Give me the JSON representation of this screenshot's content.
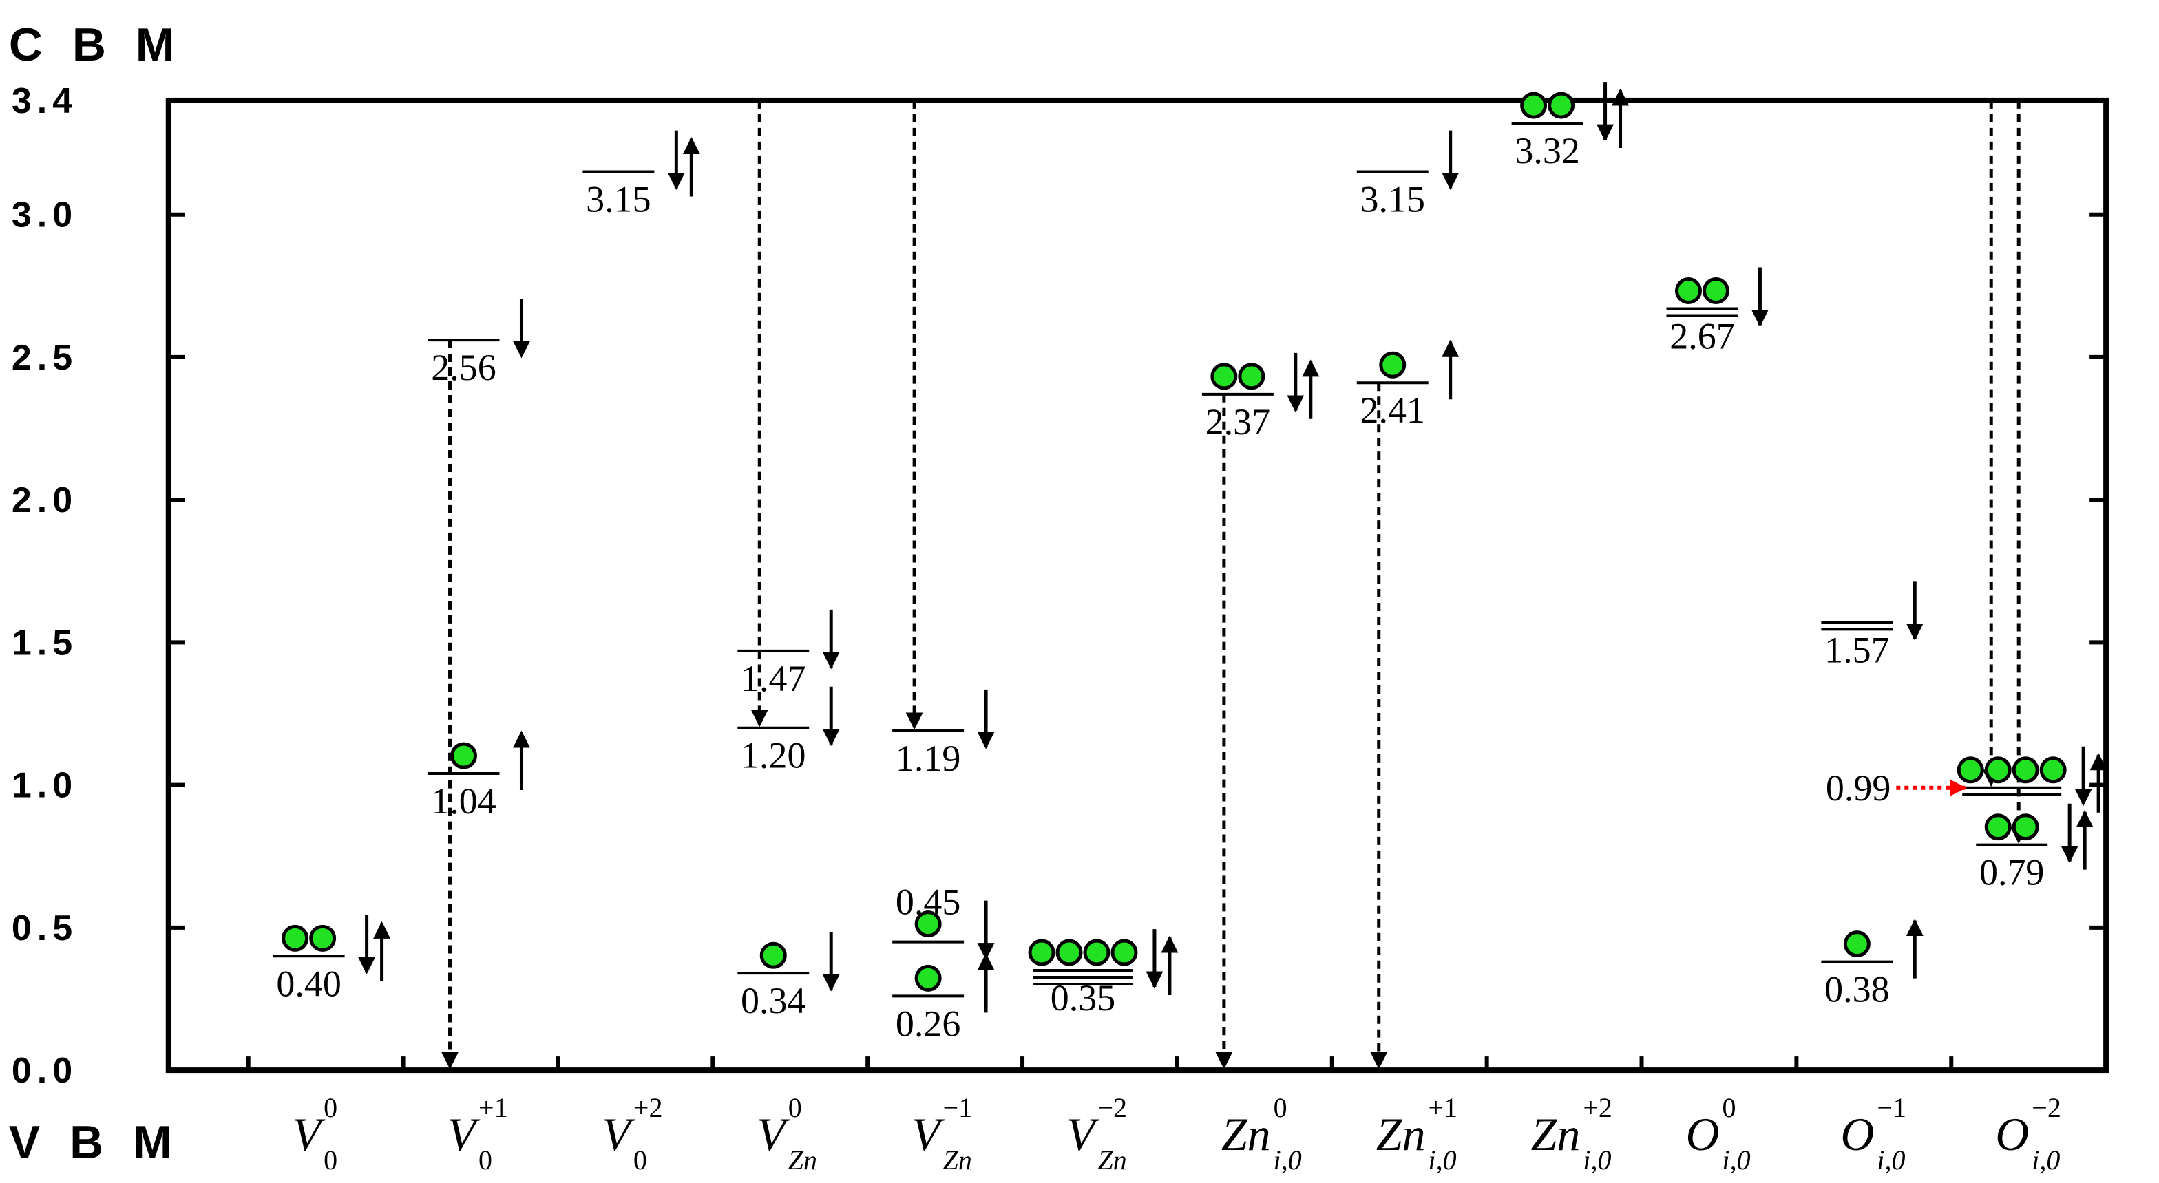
{
  "chart_data": {
    "type": "level",
    "top_label": "C B M",
    "bottom_label": "V B M",
    "ylim": [
      0,
      3.4
    ],
    "yticks": [
      {
        "value": 0,
        "label": "0.0"
      },
      {
        "value": 0.5,
        "label": "0.5"
      },
      {
        "value": 1,
        "label": "1.0"
      },
      {
        "value": 1.5,
        "label": "1.5"
      },
      {
        "value": 2,
        "label": "2.0"
      },
      {
        "value": 2.5,
        "label": "2.5"
      },
      {
        "value": 3,
        "label": "3.0"
      },
      {
        "value": 3.4,
        "label": "3.4"
      }
    ],
    "categories": [
      {
        "base": "V",
        "sup": "0",
        "sub": "0"
      },
      {
        "base": "V",
        "sup": "+1",
        "sub": "0"
      },
      {
        "base": "V",
        "sup": "+2",
        "sub": "0"
      },
      {
        "base": "V",
        "sup": "0",
        "sub": "Zn"
      },
      {
        "base": "V",
        "sup": "−1",
        "sub": "Zn"
      },
      {
        "base": "V",
        "sup": "−2",
        "sub": "Zn"
      },
      {
        "base": "Zn",
        "sup": "0",
        "sub": "i,0"
      },
      {
        "base": "Zn",
        "sup": "+1",
        "sub": "i,0"
      },
      {
        "base": "Zn",
        "sup": "+2",
        "sub": "i,0"
      },
      {
        "base": "O",
        "sup": "0",
        "sub": "i,0"
      },
      {
        "base": "O",
        "sup": "−1",
        "sub": "i,0"
      },
      {
        "base": "O",
        "sup": "−2",
        "sub": "i,0"
      }
    ],
    "levels": [
      {
        "category": 0,
        "value": 0.4,
        "label": "0.40",
        "electrons": 2,
        "spin": "down-up",
        "lines": 1
      },
      {
        "category": 1,
        "value": 2.56,
        "label": "2.56",
        "electrons": 0,
        "spin": "down",
        "lines": 1
      },
      {
        "category": 1,
        "value": 1.04,
        "label": "1.04",
        "electrons": 1,
        "spin": "up",
        "lines": 1
      },
      {
        "category": 2,
        "value": 3.15,
        "label": "3.15",
        "electrons": 0,
        "spin": "down-up",
        "lines": 1
      },
      {
        "category": 3,
        "value": 1.47,
        "label": "1.47",
        "electrons": 0,
        "spin": "down",
        "lines": 1
      },
      {
        "category": 3,
        "value": 1.2,
        "label": "1.20",
        "electrons": 0,
        "spin": "down",
        "lines": 1
      },
      {
        "category": 3,
        "value": 0.34,
        "label": "0.34",
        "electrons": 1,
        "spin": "down",
        "lines": 1
      },
      {
        "category": 4,
        "value": 1.19,
        "label": "1.19",
        "electrons": 0,
        "spin": "down",
        "lines": 1
      },
      {
        "category": 4,
        "value": 0.45,
        "label": "0.45",
        "electrons": 1,
        "spin": "down",
        "lines": 1
      },
      {
        "category": 4,
        "value": 0.26,
        "label": "0.26",
        "electrons": 1,
        "spin": "up",
        "lines": 1
      },
      {
        "category": 5,
        "value": 0.35,
        "label": "0.35",
        "electrons": 4,
        "spin": "down-up",
        "lines": 3
      },
      {
        "category": 6,
        "value": 2.37,
        "label": "2.37",
        "electrons": 2,
        "spin": "down-up",
        "lines": 1
      },
      {
        "category": 7,
        "value": 3.15,
        "label": "3.15",
        "electrons": 0,
        "spin": "down",
        "lines": 1
      },
      {
        "category": 7,
        "value": 2.41,
        "label": "2.41",
        "electrons": 1,
        "spin": "up",
        "lines": 1
      },
      {
        "category": 8,
        "value": 3.32,
        "label": "3.32",
        "electrons": 2,
        "spin": "down-up",
        "lines": 1
      },
      {
        "category": 9,
        "value": 2.67,
        "label": "2.67",
        "electrons": 2,
        "spin": "down",
        "lines": 2
      },
      {
        "category": 10,
        "value": 1.57,
        "label": "1.57",
        "electrons": 0,
        "spin": "down",
        "lines": 2
      },
      {
        "category": 10,
        "value": 0.38,
        "label": "0.38",
        "electrons": 1,
        "spin": "up",
        "lines": 1
      },
      {
        "category": 11,
        "value": 0.99,
        "label": "0.99",
        "electrons": 4,
        "spin": "down-up",
        "lines": 2,
        "label_side": "left"
      },
      {
        "category": 11,
        "value": 0.79,
        "label": "0.79",
        "electrons": 2,
        "spin": "down-up",
        "lines": 1
      }
    ],
    "transitions": [
      {
        "category": 1,
        "from": 2.56,
        "to": 0
      },
      {
        "category": 3,
        "from": 3.4,
        "to": 1.2
      },
      {
        "category": 4,
        "from": 3.4,
        "to": 1.19
      },
      {
        "category": 6,
        "from": 2.37,
        "to": 0
      },
      {
        "category": 7,
        "from": 2.41,
        "to": 0
      },
      {
        "category": 11,
        "from": 3.4,
        "to": 0.99
      },
      {
        "category": 11,
        "from": 3.4,
        "to": 0.79
      }
    ]
  }
}
